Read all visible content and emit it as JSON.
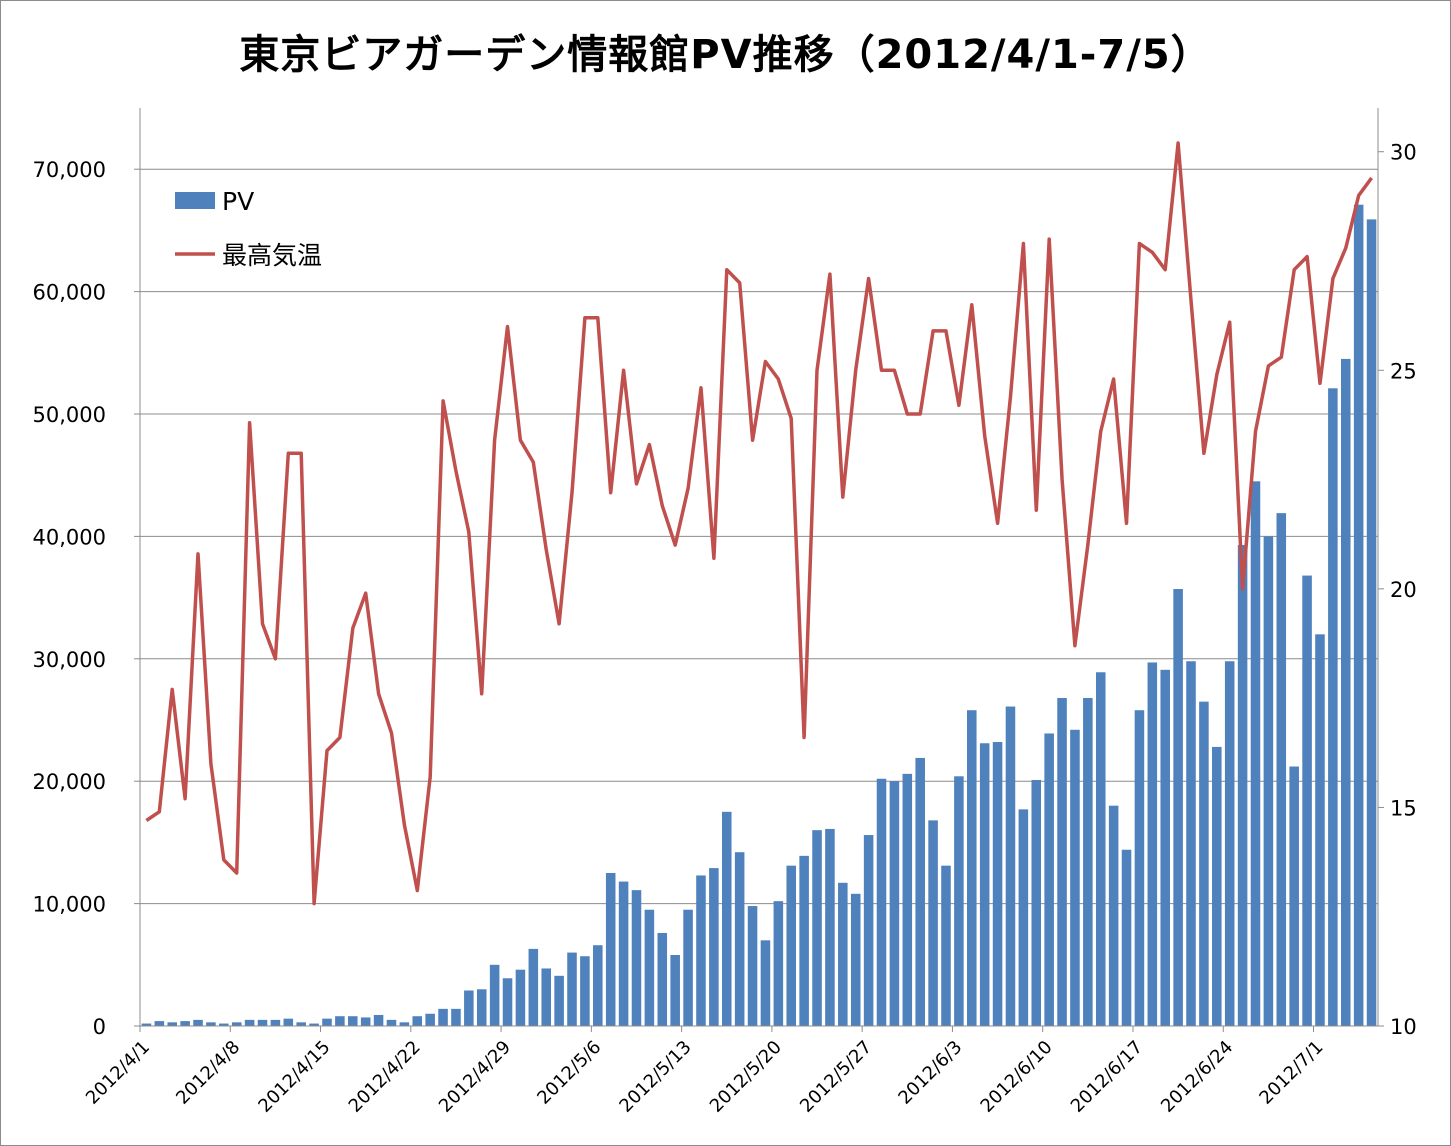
{
  "chart_data": {
    "type": "bar+line",
    "title": "東京ビアガーデン情報館PV推移（2012/4/1-7/5）",
    "xlabel": "",
    "ylabel_left": "",
    "ylabel_right": "",
    "y_left_lim": [
      0,
      75000
    ],
    "y_left_ticks": [
      "0",
      "10,000",
      "20,000",
      "30,000",
      "40,000",
      "50,000",
      "60,000",
      "70,000"
    ],
    "y_right_lim": [
      10,
      31
    ],
    "y_right_ticks": [
      "10",
      "15",
      "20",
      "25",
      "30"
    ],
    "x_tick_labels": [
      "2012/4/1",
      "2012/4/8",
      "2012/4/15",
      "2012/4/22",
      "2012/4/29",
      "2012/5/6",
      "2012/5/13",
      "2012/5/20",
      "2012/5/27",
      "2012/6/3",
      "2012/6/10",
      "2012/6/17",
      "2012/6/24",
      "2012/7/1"
    ],
    "grid": true,
    "legend_position": "top-left",
    "series": [
      {
        "name": "PV",
        "type": "bar",
        "axis": "left",
        "color": "#4f81bd",
        "values": [
          200,
          400,
          300,
          400,
          500,
          300,
          200,
          300,
          500,
          500,
          500,
          600,
          300,
          200,
          600,
          800,
          800,
          700,
          900,
          500,
          300,
          800,
          1000,
          1400,
          1400,
          2900,
          3000,
          5000,
          3900,
          4600,
          6300,
          4700,
          4100,
          6000,
          5700,
          6600,
          12500,
          11800,
          11100,
          9500,
          7600,
          5800,
          9500,
          12300,
          12900,
          17500,
          14200,
          9800,
          7000,
          10200,
          13100,
          13900,
          16000,
          16100,
          11700,
          10800,
          15600,
          20200,
          20000,
          20600,
          21900,
          16800,
          13100,
          20400,
          25800,
          23100,
          23200,
          26100,
          17700,
          20100,
          23900,
          26800,
          24200,
          26800,
          28900,
          18000,
          14400,
          25800,
          29700,
          29100,
          35700,
          29800,
          26500,
          22800,
          29800,
          39300,
          44500,
          40000,
          41900,
          21200,
          36800,
          32000,
          52100,
          54500,
          67100,
          65900
        ]
      },
      {
        "name": "最高気温",
        "type": "line",
        "axis": "right",
        "color": "#c0504d",
        "values": [
          14.7,
          14.9,
          17.7,
          15.2,
          20.8,
          16.0,
          13.8,
          13.5,
          23.8,
          19.2,
          18.4,
          23.1,
          23.1,
          12.8,
          16.3,
          16.6,
          19.1,
          19.9,
          17.6,
          16.7,
          14.6,
          13.1,
          15.7,
          24.3,
          22.7,
          21.3,
          17.6,
          23.4,
          26.0,
          23.4,
          22.9,
          20.9,
          19.2,
          22.2,
          26.2,
          26.2,
          22.2,
          25.0,
          22.4,
          23.3,
          21.9,
          21.0,
          22.3,
          24.6,
          20.7,
          27.3,
          27.0,
          23.4,
          25.2,
          24.8,
          23.9,
          16.6,
          25.0,
          27.2,
          22.1,
          25.0,
          27.1,
          25.0,
          25.0,
          24.0,
          24.0,
          25.9,
          25.9,
          24.2,
          26.5,
          23.5,
          21.5,
          24.4,
          27.9,
          21.8,
          28.0,
          22.5,
          18.7,
          21.0,
          23.6,
          24.8,
          21.5,
          27.9,
          27.7,
          27.3,
          30.2,
          26.6,
          23.1,
          24.9,
          26.1,
          20.0,
          23.6,
          25.1,
          25.3,
          27.3,
          27.6,
          24.7,
          27.1,
          27.8,
          29.0,
          29.4
        ]
      }
    ]
  }
}
